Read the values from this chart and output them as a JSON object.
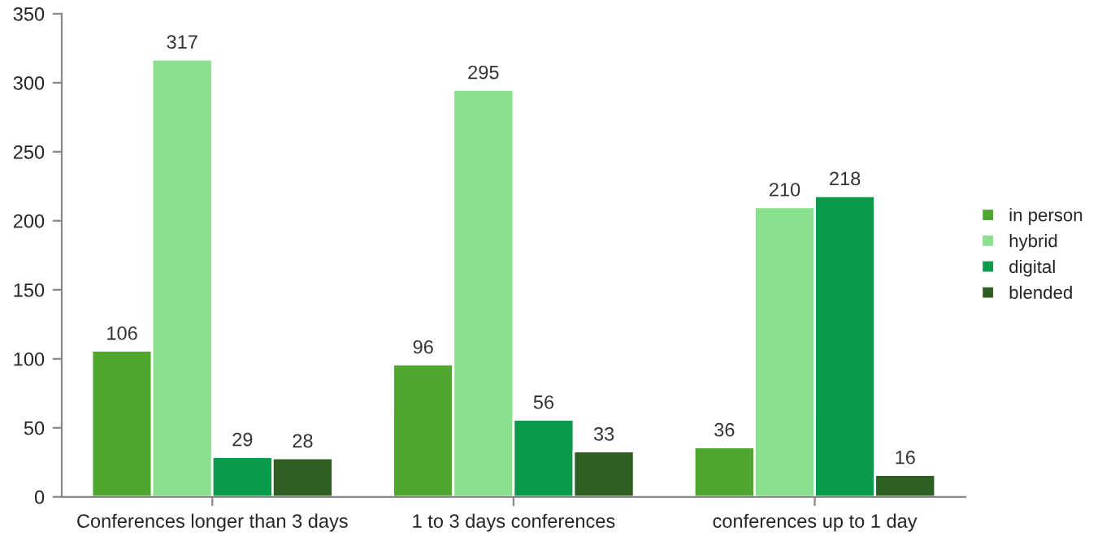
{
  "chart_data": {
    "type": "bar",
    "categories": [
      "Conferences longer than 3 days",
      "1 to 3 days conferences",
      "conferences up to 1 day"
    ],
    "series": [
      {
        "name": "in person",
        "color": "#4fa72f",
        "values": [
          106,
          96,
          36
        ]
      },
      {
        "name": "hybrid",
        "color": "#8ae08c",
        "values": [
          317,
          295,
          210
        ]
      },
      {
        "name": "digital",
        "color": "#0b9a4c",
        "values": [
          29,
          56,
          218
        ]
      },
      {
        "name": "blended",
        "color": "#2e5f21",
        "values": [
          28,
          33,
          16
        ]
      }
    ],
    "ylim": [
      0,
      350
    ],
    "yticks": [
      0,
      50,
      100,
      150,
      200,
      250,
      300,
      350
    ],
    "data_labels": true,
    "legend": "right",
    "grid": false
  }
}
